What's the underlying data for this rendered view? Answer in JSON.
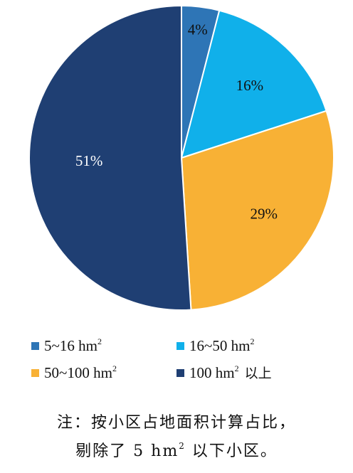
{
  "chart_data": {
    "type": "pie",
    "slices": [
      {
        "label": "5~16 hm",
        "label_sup": "2",
        "label_suffix": "",
        "value": 4,
        "display": "4%",
        "color": "#2e75b6",
        "text_color": "#111111"
      },
      {
        "label": "16~50 hm",
        "label_sup": "2",
        "label_suffix": "",
        "value": 16,
        "display": "16%",
        "color": "#10b0ea",
        "text_color": "#111111"
      },
      {
        "label": "50~100 hm",
        "label_sup": "2",
        "label_suffix": "",
        "value": 29,
        "display": "29%",
        "color": "#f8b135",
        "text_color": "#111111"
      },
      {
        "label": "100 hm",
        "label_sup": "2",
        "label_suffix": "以上",
        "value": 51,
        "display": "51%",
        "color": "#1f3f73",
        "text_color": "#ffffff"
      }
    ],
    "legend_placement": "bottom",
    "start_angle_deg": 0,
    "direction": "clockwise"
  },
  "note": {
    "line1": "注：按小区占地面积计算占比，",
    "line2_prefix": "剔除了 5 hm",
    "line2_sup": "2",
    "line2_suffix": " 以下小区。"
  }
}
